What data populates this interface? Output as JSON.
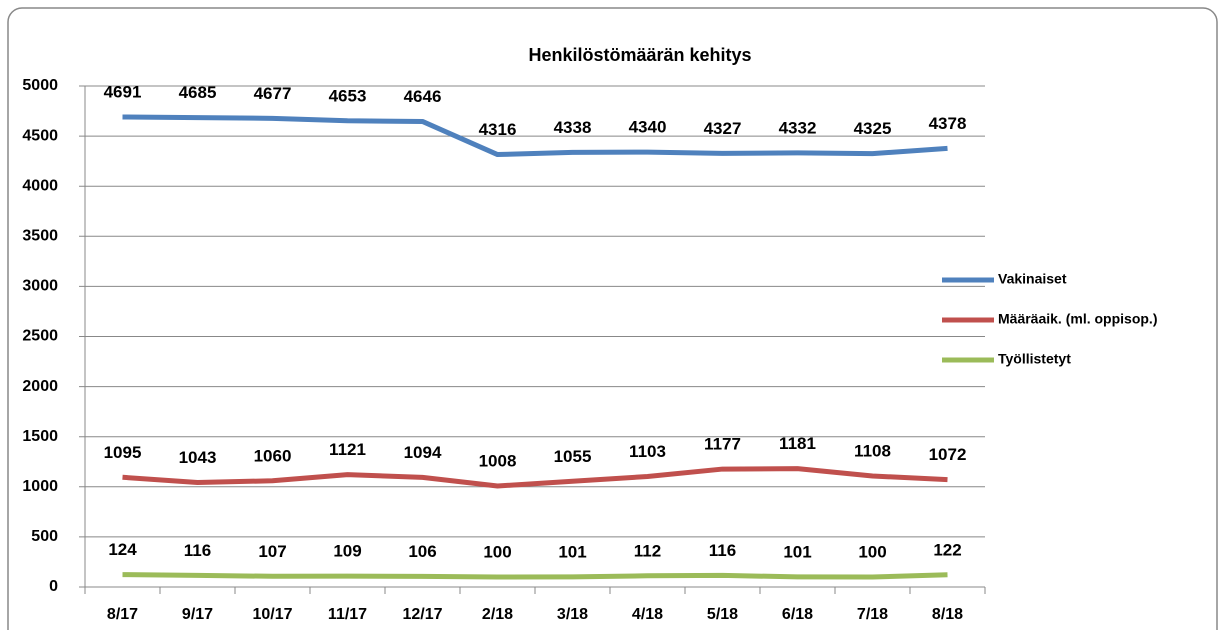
{
  "chart_data": {
    "type": "line",
    "title": "Henkilöstömäärän kehitys",
    "categories": [
      "8/17",
      "9/17",
      "10/17",
      "11/17",
      "12/17",
      "2/18",
      "3/18",
      "4/18",
      "5/18",
      "6/18",
      "7/18",
      "8/18"
    ],
    "series": [
      {
        "name": "Vakinaiset",
        "color": "#4f81bd",
        "values": [
          4691,
          4685,
          4677,
          4653,
          4646,
          4316,
          4338,
          4340,
          4327,
          4332,
          4325,
          4378
        ]
      },
      {
        "name": "Määräaik. (ml. oppisop.)",
        "color": "#c0504d",
        "values": [
          1095,
          1043,
          1060,
          1121,
          1094,
          1008,
          1055,
          1103,
          1177,
          1181,
          1108,
          1072
        ]
      },
      {
        "name": "Työllistetyt",
        "color": "#9bbb59",
        "values": [
          124,
          116,
          107,
          109,
          106,
          100,
          101,
          112,
          116,
          101,
          100,
          122
        ]
      }
    ],
    "ylim": [
      0,
      5000
    ],
    "yticks": [
      0,
      500,
      1000,
      1500,
      2000,
      2500,
      3000,
      3500,
      4000,
      4500,
      5000
    ],
    "grid": true,
    "legend": "right"
  }
}
